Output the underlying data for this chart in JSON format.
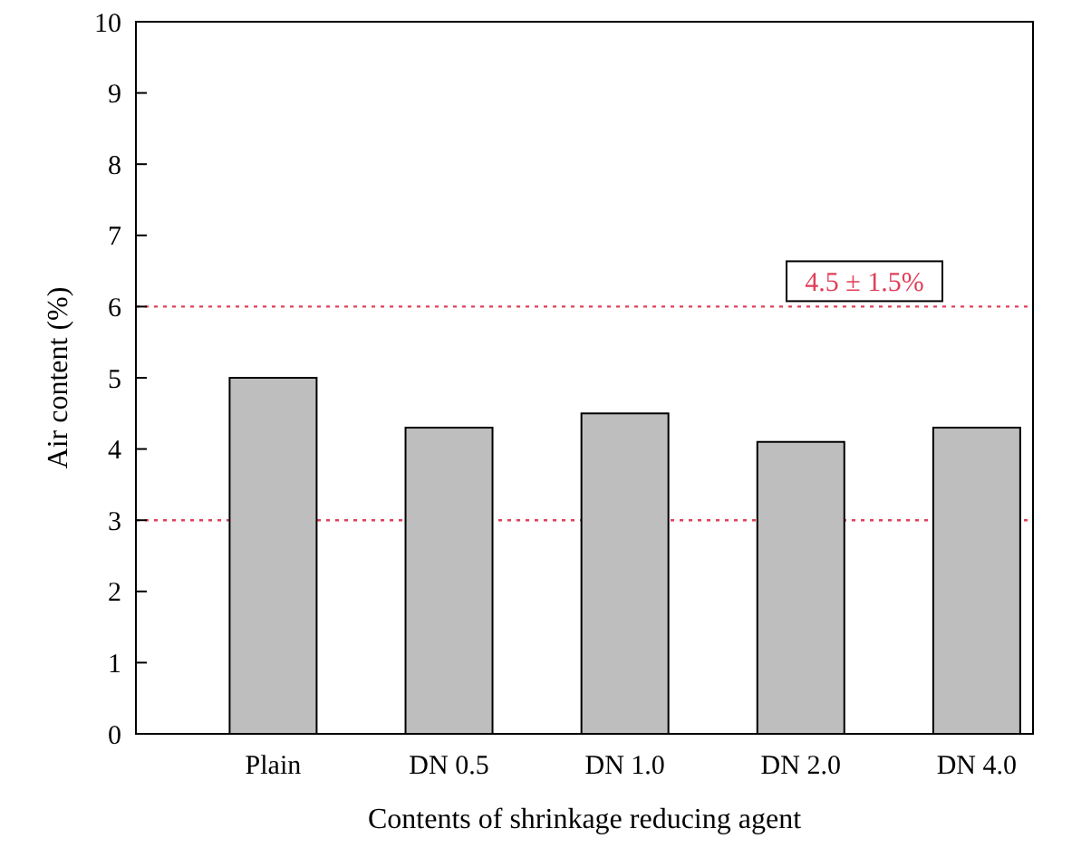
{
  "chart_data": {
    "type": "bar",
    "xlabel": "Contents of shrinkage reducing agent",
    "ylabel": "Air content (%)",
    "categories": [
      "Plain",
      "DN 0.5",
      "DN 1.0",
      "DN 2.0",
      "DN 4.0"
    ],
    "values": [
      5.0,
      4.3,
      4.5,
      4.1,
      4.3
    ],
    "color": "#bebebe",
    "ylim": [
      0,
      10
    ],
    "yticks": [
      0,
      1,
      2,
      3,
      4,
      5,
      6,
      7,
      8,
      9,
      10
    ],
    "grid": false,
    "ref_lines": [
      {
        "axis": "y",
        "value": 6,
        "color": "#e0405a",
        "line_style": "dotted"
      },
      {
        "axis": "y",
        "value": 3,
        "color": "#e0405a",
        "line_style": "dotted"
      }
    ],
    "annotations": [
      "4.5 ± 1.5%"
    ]
  }
}
